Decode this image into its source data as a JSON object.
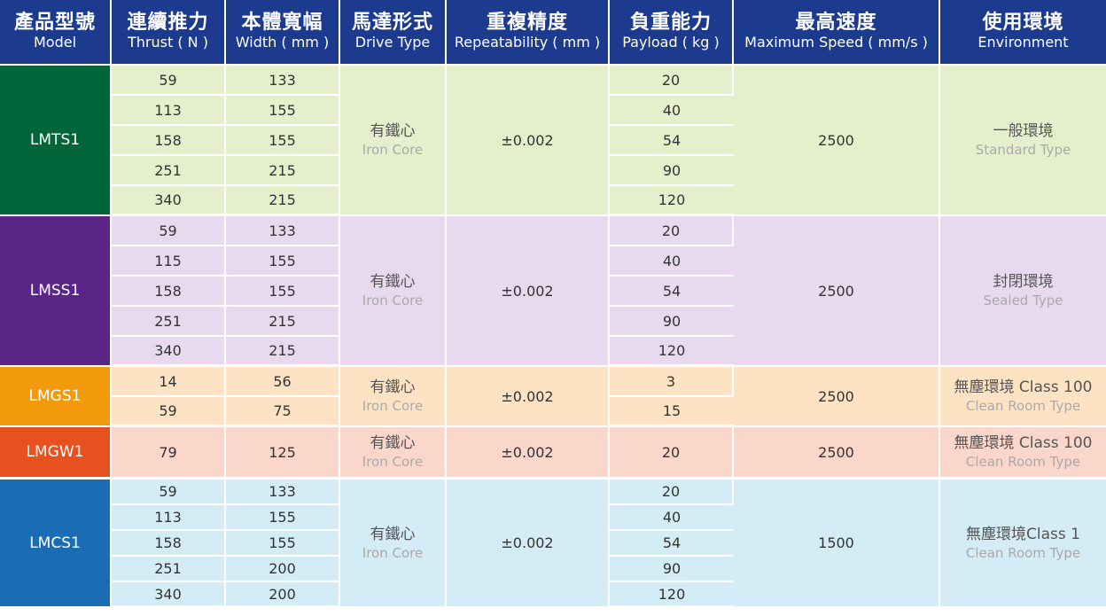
{
  "colors": {
    "header_bg": "#1c3a8e",
    "LMTS1": "#03663a",
    "LMSS1": "#5a2586",
    "LMGS1": "#f29a0b",
    "LMGW1": "#e7501f",
    "LMCS1": "#1a6db5"
  },
  "headers": [
    {
      "zh": "產品型號",
      "en": "Model"
    },
    {
      "zh": "連續推力",
      "en": "Thrust ( N )"
    },
    {
      "zh": "本體寬幅",
      "en": "Width ( mm )"
    },
    {
      "zh": "馬達形式",
      "en": "Drive Type"
    },
    {
      "zh": "重複精度",
      "en": "Repeatability ( mm )"
    },
    {
      "zh": "負重能力",
      "en": "Payload ( kg )"
    },
    {
      "zh": "最高速度",
      "en": "Maximum Speed ( mm/s )"
    },
    {
      "zh": "使用環境",
      "en": "Environment"
    }
  ],
  "groups": [
    {
      "model": "LMTS1",
      "drive_zh": "有鐵心",
      "drive_en": "Iron Core",
      "repeatability": "±0.002",
      "speed": "2500",
      "env_zh": "一般環境",
      "env_en": "Standard Type",
      "rows": [
        {
          "thrust": "59",
          "width": "133",
          "payload": "20"
        },
        {
          "thrust": "113",
          "width": "155",
          "payload": "40"
        },
        {
          "thrust": "158",
          "width": "155",
          "payload": "54"
        },
        {
          "thrust": "251",
          "width": "215",
          "payload": "90"
        },
        {
          "thrust": "340",
          "width": "215",
          "payload": "120"
        }
      ]
    },
    {
      "model": "LMSS1",
      "drive_zh": "有鐵心",
      "drive_en": "Iron Core",
      "repeatability": "±0.002",
      "speed": "2500",
      "env_zh": "封閉環境",
      "env_en": "Sealed Type",
      "rows": [
        {
          "thrust": "59",
          "width": "133",
          "payload": "20"
        },
        {
          "thrust": "115",
          "width": "155",
          "payload": "40"
        },
        {
          "thrust": "158",
          "width": "155",
          "payload": "54"
        },
        {
          "thrust": "251",
          "width": "215",
          "payload": "90"
        },
        {
          "thrust": "340",
          "width": "215",
          "payload": "120"
        }
      ]
    },
    {
      "model": "LMGS1",
      "drive_zh": "有鐵心",
      "drive_en": "Iron Core",
      "repeatability": "±0.002",
      "speed": "2500",
      "env_zh": "無塵環境 Class 100",
      "env_en": "Clean Room Type",
      "rows": [
        {
          "thrust": "14",
          "width": "56",
          "payload": "3"
        },
        {
          "thrust": "59",
          "width": "75",
          "payload": "15"
        }
      ]
    },
    {
      "model": "LMGW1",
      "drive_zh": "有鐵心",
      "drive_en": "Iron Core",
      "repeatability": "±0.002",
      "speed": "2500",
      "env_zh": "無塵環境 Class 100",
      "env_en": "Clean Room Type",
      "rows": [
        {
          "thrust": "79",
          "width": "125",
          "payload": "20"
        }
      ]
    },
    {
      "model": "LMCS1",
      "drive_zh": "有鐵心",
      "drive_en": "Iron Core",
      "repeatability": "±0.002",
      "speed": "1500",
      "env_zh": "無塵環境Class 1",
      "env_en": "Clean Room Type",
      "rows": [
        {
          "thrust": "59",
          "width": "133",
          "payload": "20"
        },
        {
          "thrust": "113",
          "width": "155",
          "payload": "40"
        },
        {
          "thrust": "158",
          "width": "155",
          "payload": "54"
        },
        {
          "thrust": "251",
          "width": "200",
          "payload": "90"
        },
        {
          "thrust": "340",
          "width": "200",
          "payload": "120"
        }
      ]
    }
  ]
}
